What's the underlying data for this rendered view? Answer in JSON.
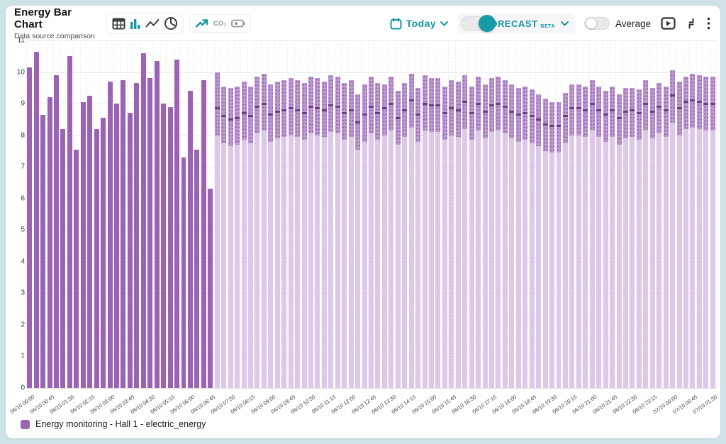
{
  "header": {
    "title": "Energy Bar Chart",
    "subtitle": "Data source comparison",
    "co2_label": "CO₂"
  },
  "controls": {
    "date_range_label": "Today",
    "forecast_label": "FORECAST",
    "forecast_beta_label": "BETA",
    "forecast_enabled": true,
    "average_label": "Average",
    "average_enabled": false
  },
  "icons": {
    "view_switcher": [
      "table-icon",
      "bar-chart-icon",
      "line-chart-icon",
      "pie-chart-icon"
    ],
    "data_type_switcher": [
      "trend-up-icon",
      "co2-icon",
      "battery-icon"
    ],
    "date": "calendar-icon",
    "chevrons": "chevron-down-icon",
    "tools": [
      "play-panel-icon",
      "collapse-icon",
      "kebab-menu-icon"
    ]
  },
  "colors": {
    "accent_teal": "#1597a6",
    "bar_solid": "#9c63b5",
    "forecast_pale": "#ddc8ea",
    "forecast_band": "#bd97d2",
    "forecast_dots": "#8f60ab",
    "forecast_dash": "#6e3d8a",
    "frame": "#cfe3e6"
  },
  "legend": {
    "label": "Energy monitoring - Hall 1 - electric_energy",
    "swatch_color": "#9c63b5"
  },
  "chart_data": {
    "type": "bar",
    "title": "Energy Bar Chart",
    "xlabel": "",
    "ylabel": "",
    "ylim": [
      0,
      11
    ],
    "y_ticks": [
      0,
      1,
      2,
      3,
      4,
      5,
      6,
      7,
      8,
      9,
      10,
      11
    ],
    "grid": true,
    "bar_interval_minutes": 15,
    "label_every_n_bars": 3,
    "total_bars": 103,
    "x_tick_labels": [
      "06/10 00:00",
      "06/10 00:45",
      "06/10 01:30",
      "06/10 02:15",
      "06/10 03:00",
      "06/10 03:45",
      "06/10 04:30",
      "06/10 05:15",
      "06/10 06:00",
      "06/10 06:45",
      "06/10 07:30",
      "06/10 08:15",
      "06/10 09:00",
      "06/10 09:45",
      "06/10 10:30",
      "06/10 11:15",
      "06/10 12:00",
      "06/10 12:45",
      "06/10 13:30",
      "06/10 14:15",
      "06/10 15:00",
      "06/10 15:45",
      "06/10 16:30",
      "06/10 17:15",
      "06/10 18:00",
      "06/10 18:45",
      "06/10 19:30",
      "06/10 20:15",
      "06/10 21:00",
      "06/10 21:45",
      "06/10 22:30",
      "06/10 23:15",
      "07/10 00:00",
      "07/10 00:45",
      "07/10 01:30"
    ],
    "series": [
      {
        "name": "Energy monitoring - Hall 1 - electric_energy",
        "role": "actual",
        "values": [
          10.15,
          10.65,
          8.65,
          9.2,
          9.9,
          8.2,
          10.5,
          7.55,
          9.05,
          9.25,
          8.2,
          8.55,
          9.7,
          9.0,
          9.75,
          8.7,
          9.65,
          10.6,
          9.8,
          10.35,
          9.0,
          8.9,
          10.4,
          7.3,
          9.4,
          7.55,
          9.75,
          6.3
        ]
      },
      {
        "name": "Forecast",
        "role": "forecast",
        "upper": [
          10.0,
          9.55,
          9.5,
          9.55,
          9.7,
          9.55,
          9.85,
          9.95,
          9.6,
          9.7,
          9.75,
          9.8,
          9.75,
          9.65,
          9.85,
          9.8,
          9.7,
          9.9,
          9.85,
          9.65,
          9.75,
          9.3,
          9.6,
          9.85,
          9.65,
          9.6,
          9.85,
          9.4,
          9.65,
          9.95,
          9.5,
          9.9,
          9.8,
          9.8,
          9.55,
          9.75,
          9.7,
          9.9,
          9.55,
          9.85,
          9.6,
          9.8,
          9.85,
          9.75,
          9.6,
          9.5,
          9.55,
          9.45,
          9.3,
          9.15,
          9.05,
          9.05,
          9.35,
          9.6,
          9.6,
          9.55,
          9.75,
          9.55,
          9.4,
          9.55,
          9.3,
          9.5,
          9.5,
          9.45,
          9.75,
          9.5,
          9.65,
          9.55,
          10.05,
          9.7,
          9.85,
          9.95,
          9.9,
          9.85,
          9.85
        ],
        "mid": [
          8.85,
          8.6,
          8.5,
          8.55,
          8.7,
          8.6,
          8.9,
          9.0,
          8.65,
          8.75,
          8.8,
          8.85,
          8.8,
          8.7,
          8.9,
          8.85,
          8.8,
          8.95,
          8.9,
          8.7,
          8.8,
          8.4,
          8.65,
          8.9,
          8.7,
          8.85,
          9.0,
          8.55,
          8.8,
          9.1,
          8.65,
          9.0,
          8.95,
          8.95,
          8.7,
          8.85,
          8.8,
          9.05,
          8.7,
          9.0,
          8.75,
          8.95,
          9.0,
          8.9,
          8.75,
          8.65,
          8.7,
          8.6,
          8.5,
          8.35,
          8.3,
          8.3,
          8.6,
          8.85,
          8.85,
          8.8,
          9.0,
          8.8,
          8.65,
          8.8,
          8.55,
          8.75,
          8.8,
          8.7,
          9.0,
          8.75,
          8.9,
          8.8,
          9.25,
          8.85,
          9.05,
          9.1,
          9.05,
          9.0,
          9.0
        ],
        "lower": [
          8.0,
          7.75,
          7.65,
          7.7,
          7.85,
          7.75,
          8.05,
          8.15,
          7.8,
          7.9,
          7.95,
          8.0,
          7.95,
          7.85,
          8.05,
          8.0,
          7.95,
          8.1,
          8.05,
          7.85,
          7.95,
          7.55,
          7.8,
          8.05,
          7.85,
          8.0,
          8.15,
          7.7,
          7.95,
          8.25,
          7.8,
          8.15,
          8.1,
          8.1,
          7.85,
          8.0,
          7.95,
          8.2,
          7.85,
          8.15,
          7.9,
          8.1,
          8.15,
          8.05,
          7.9,
          7.8,
          7.85,
          7.75,
          7.65,
          7.5,
          7.45,
          7.45,
          7.75,
          8.0,
          8.0,
          7.95,
          8.15,
          7.95,
          7.8,
          7.95,
          7.7,
          7.9,
          7.95,
          7.85,
          8.15,
          7.9,
          8.05,
          7.95,
          8.4,
          8.0,
          8.2,
          8.25,
          8.2,
          8.15,
          8.15
        ]
      }
    ]
  }
}
